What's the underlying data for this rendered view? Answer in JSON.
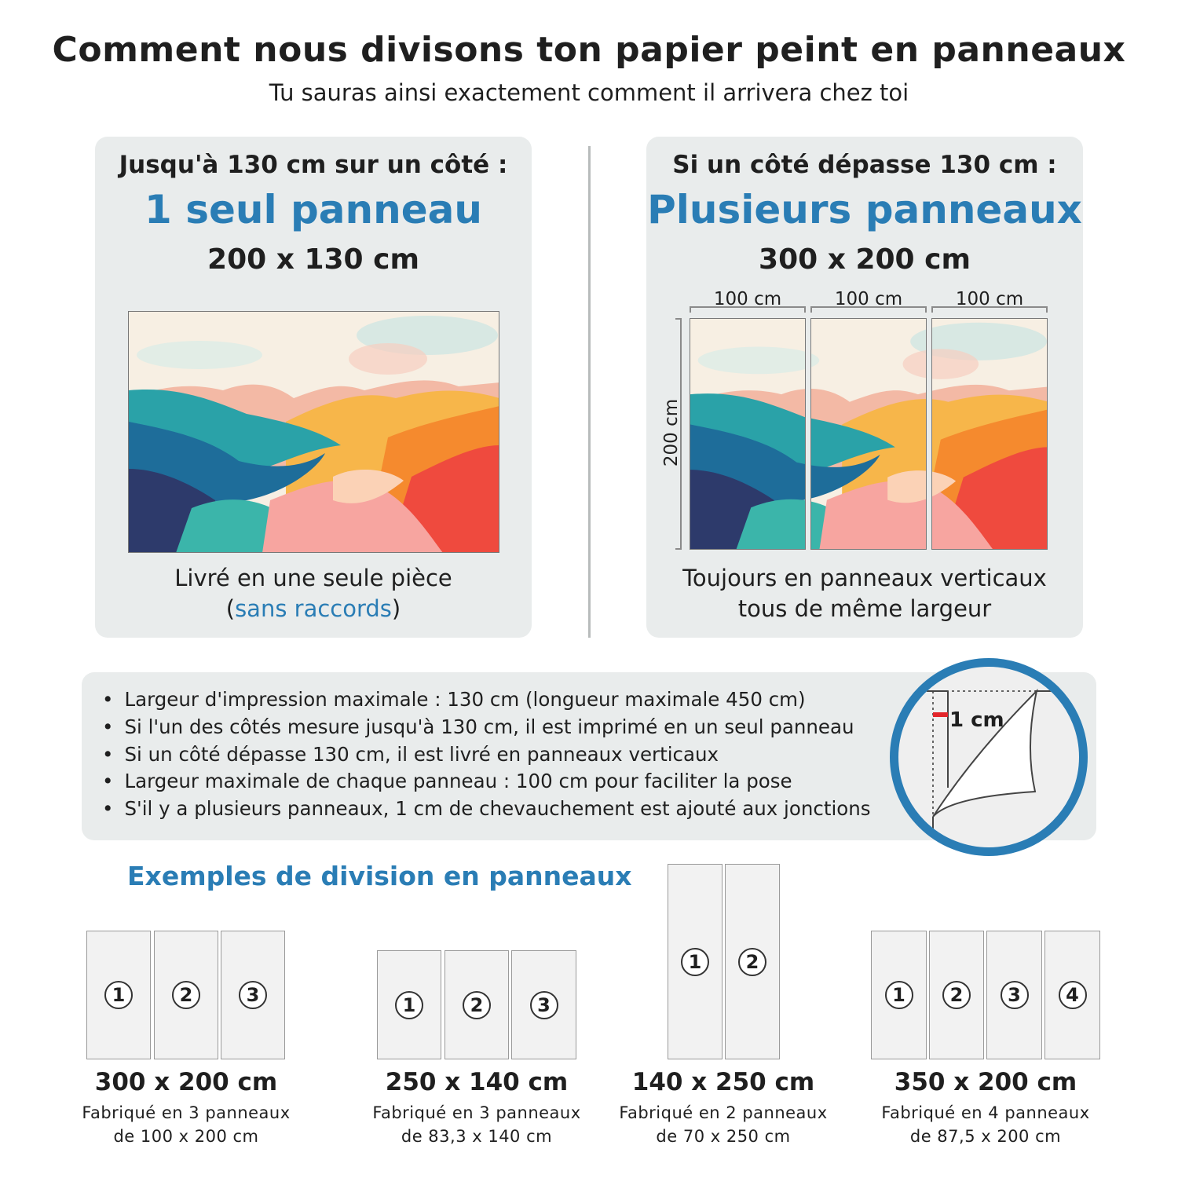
{
  "header": {
    "title": "Comment nous divisons ton papier peint en panneaux",
    "subtitle": "Tu sauras ainsi exactement comment il arrivera chez toi"
  },
  "colors": {
    "accent": "#2a7db5",
    "card_bg": "#e9ecec",
    "overlap_marker": "#e3262b"
  },
  "single": {
    "heading": "Jusqu'à 130 cm sur un côté :",
    "highlight": "1 seul panneau",
    "size": "200 x 130 cm",
    "caption_line1": "Livré en une seule pièce",
    "caption_open": "(",
    "caption_highlight": "sans raccords",
    "caption_close": ")"
  },
  "multi": {
    "heading": "Si un côté dépasse 130 cm :",
    "highlight": "Plusieurs panneaux",
    "size": "300 x 200 cm",
    "widths": [
      "100 cm",
      "100 cm",
      "100 cm"
    ],
    "height": "200 cm",
    "caption_line1": "Toujours en panneaux verticaux",
    "caption_line2": "tous de même largeur"
  },
  "info": {
    "bullets": [
      "Largeur d'impression maximale : 130 cm (longueur maximale 450 cm)",
      "Si l'un des côtés mesure jusqu'à 130 cm, il est imprimé en un seul panneau",
      "Si un côté dépasse 130 cm, il est livré en panneaux verticaux",
      "Largeur maximale de chaque panneau : 100 cm pour faciliter la pose",
      "S'il y a plusieurs panneaux, 1 cm de chevauchement est ajouté aux jonctions"
    ],
    "overlap_label": "1 cm"
  },
  "examples": {
    "title": "Exemples de division en panneaux",
    "items": [
      {
        "size": "300 x 200 cm",
        "line1": "Fabriqué en 3 panneaux",
        "line2": "de 100 x 200 cm",
        "panels": [
          "1",
          "2",
          "3"
        ]
      },
      {
        "size": "250 x 140 cm",
        "line1": "Fabriqué en 3 panneaux",
        "line2": "de 83,3 x 140 cm",
        "panels": [
          "1",
          "2",
          "3"
        ]
      },
      {
        "size": "140 x 250 cm",
        "line1": "Fabriqué en 2 panneaux",
        "line2": "de 70 x 250 cm",
        "panels": [
          "1",
          "2"
        ]
      },
      {
        "size": "350 x 200 cm",
        "line1": "Fabriqué en 4 panneaux",
        "line2": "de 87,5 x 200 cm",
        "panels": [
          "1",
          "2",
          "3",
          "4"
        ]
      }
    ]
  }
}
